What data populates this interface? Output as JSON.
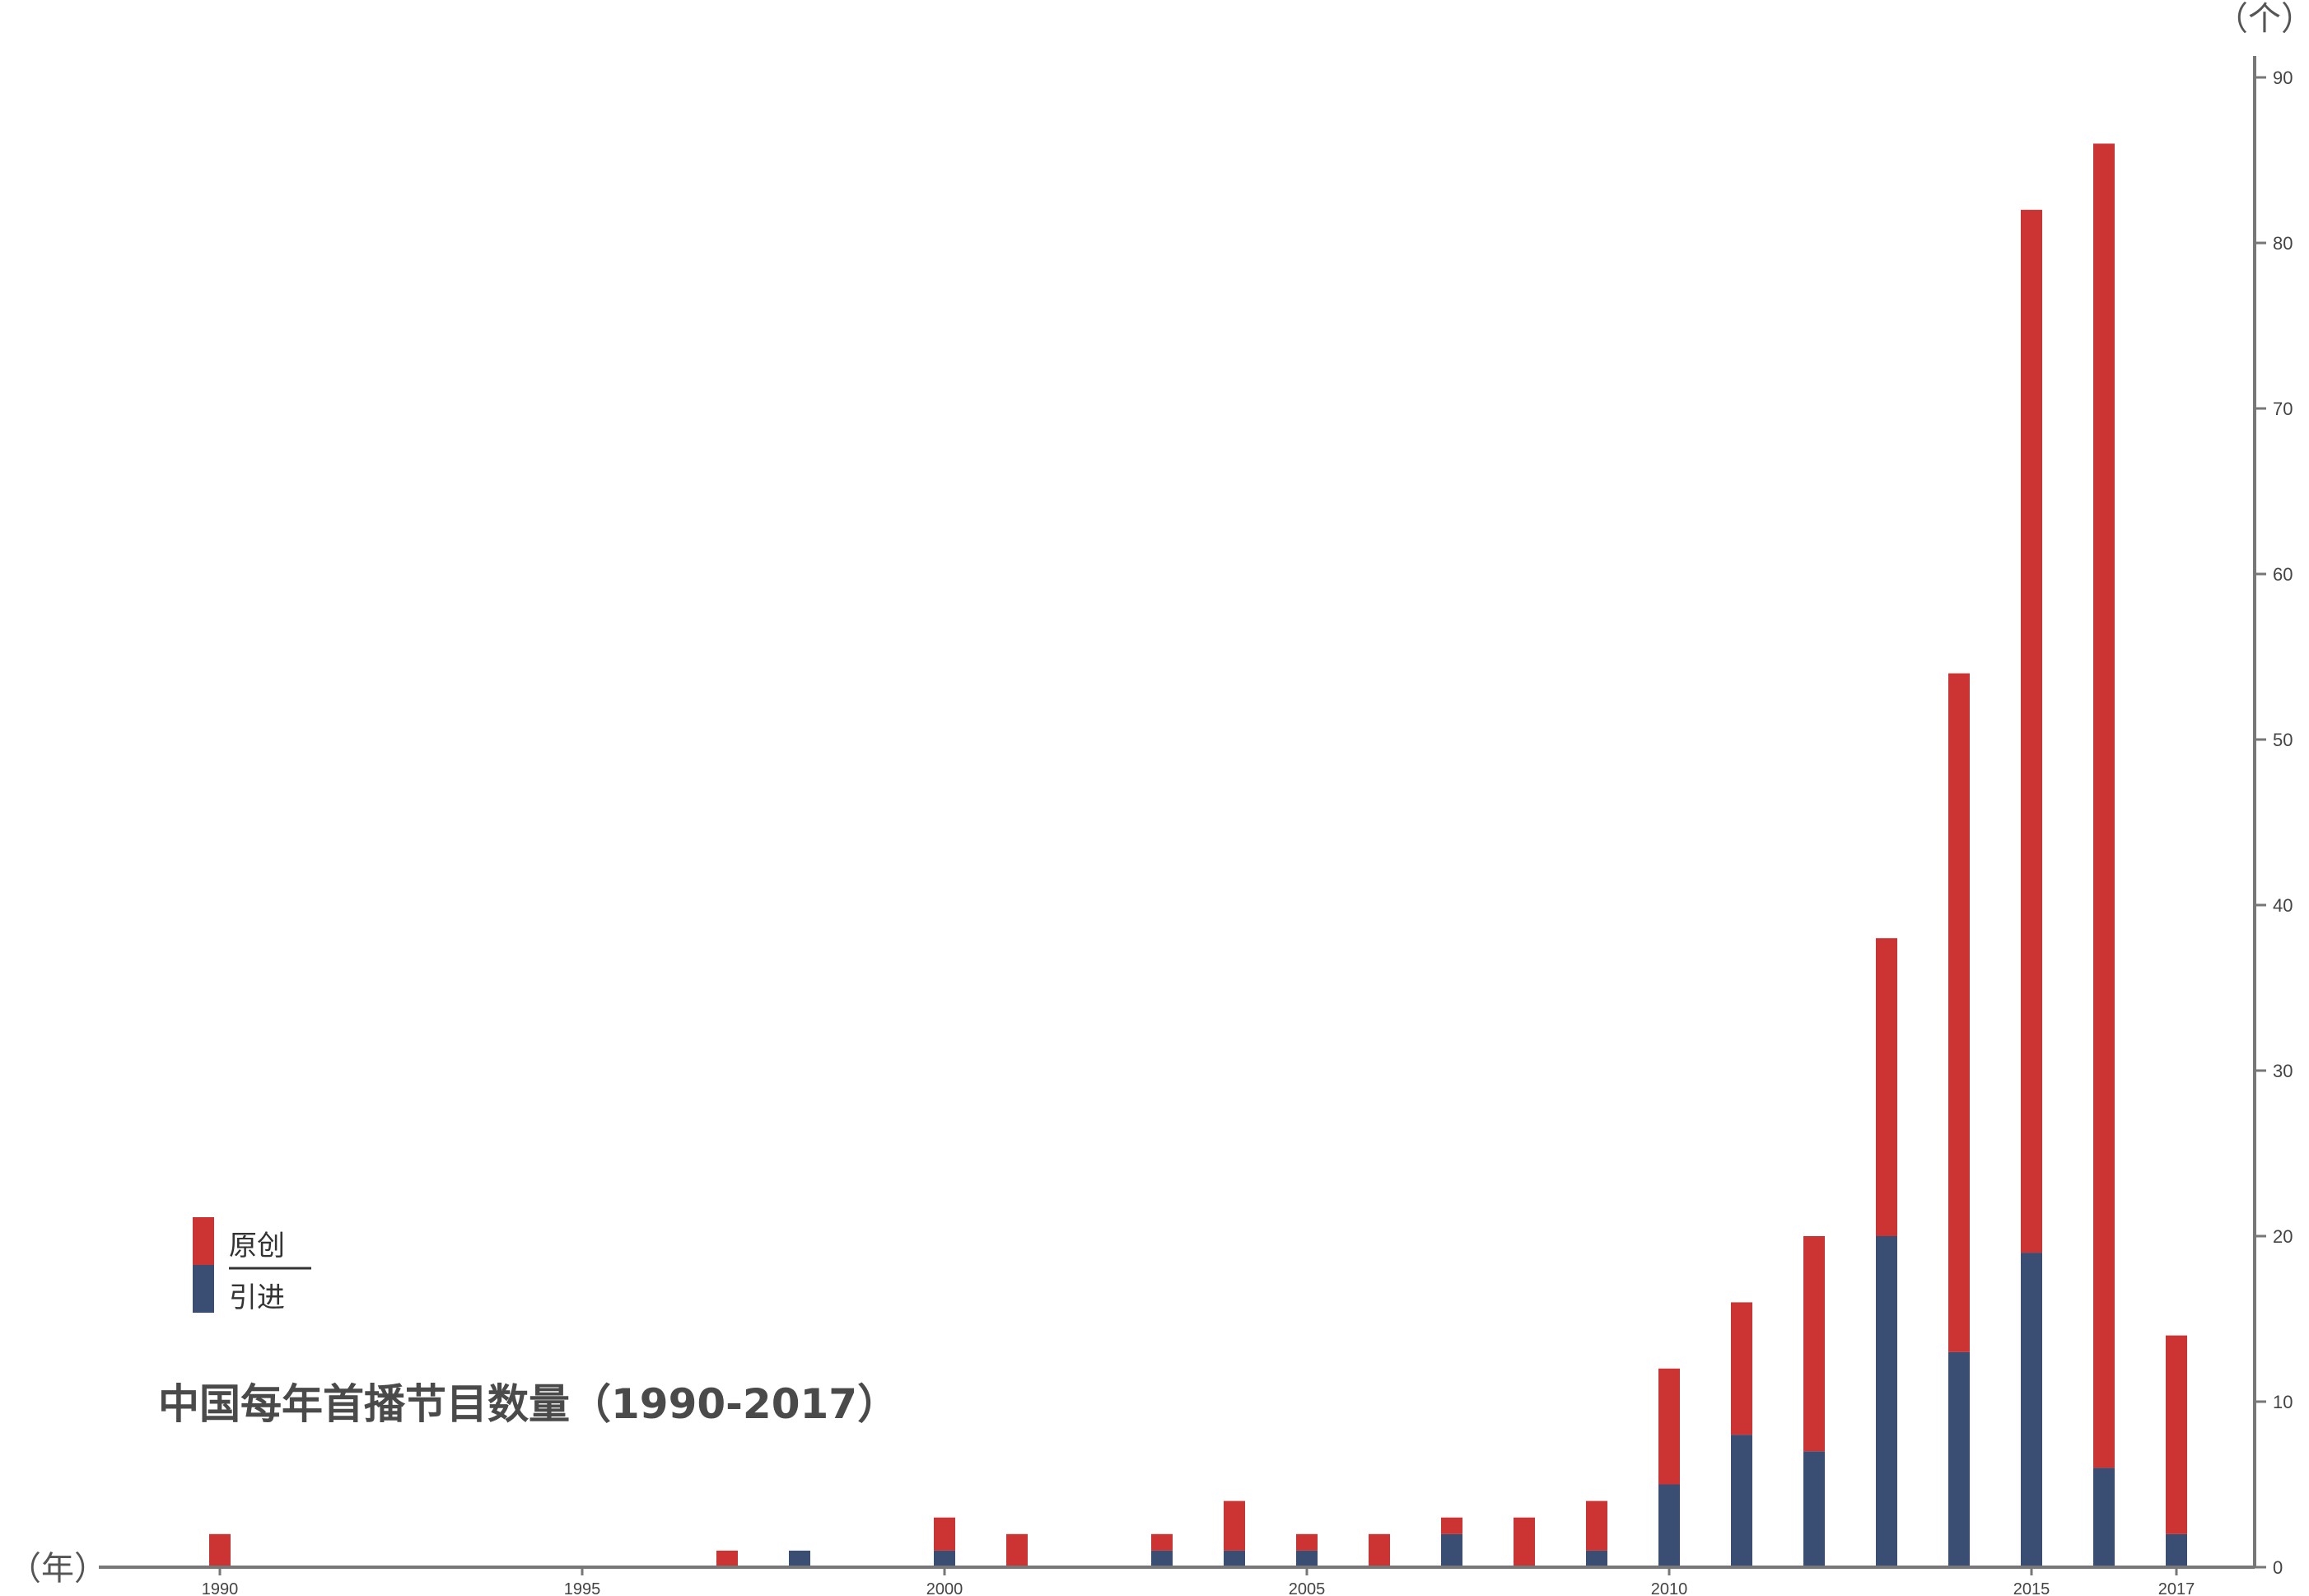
{
  "chart_data": {
    "type": "bar",
    "stacked": true,
    "title": "中国每年首播节目数量（1990-2017）",
    "xlabel": "（年）",
    "ylabel": "（个）",
    "xlim": [
      1989,
      2018
    ],
    "ylim": [
      0,
      90
    ],
    "x_ticks": [
      1990,
      1995,
      2000,
      2005,
      2010,
      2015,
      2017
    ],
    "y_ticks": [
      0,
      10,
      20,
      30,
      40,
      50,
      60,
      70,
      80,
      90
    ],
    "categories": [
      1990,
      1997,
      1998,
      2000,
      2001,
      2003,
      2004,
      2005,
      2006,
      2007,
      2008,
      2009,
      2010,
      2011,
      2012,
      2013,
      2014,
      2015,
      2016,
      2017
    ],
    "series": [
      {
        "name": "引进",
        "color": "#3a4d72",
        "values": [
          0,
          0,
          1,
          1,
          0,
          1,
          1,
          1,
          0,
          2,
          0,
          1,
          5,
          8,
          7,
          20,
          13,
          19,
          6,
          2
        ]
      },
      {
        "name": "原创",
        "color": "#cc3333",
        "values": [
          2,
          1,
          0,
          2,
          2,
          1,
          3,
          1,
          2,
          1,
          3,
          3,
          7,
          8,
          13,
          18,
          41,
          63,
          80,
          12
        ]
      }
    ],
    "legend": {
      "placement": "left",
      "items": [
        "原创",
        "引进"
      ]
    },
    "axis_color": "#777777",
    "title_color": "#4a4a4a"
  }
}
